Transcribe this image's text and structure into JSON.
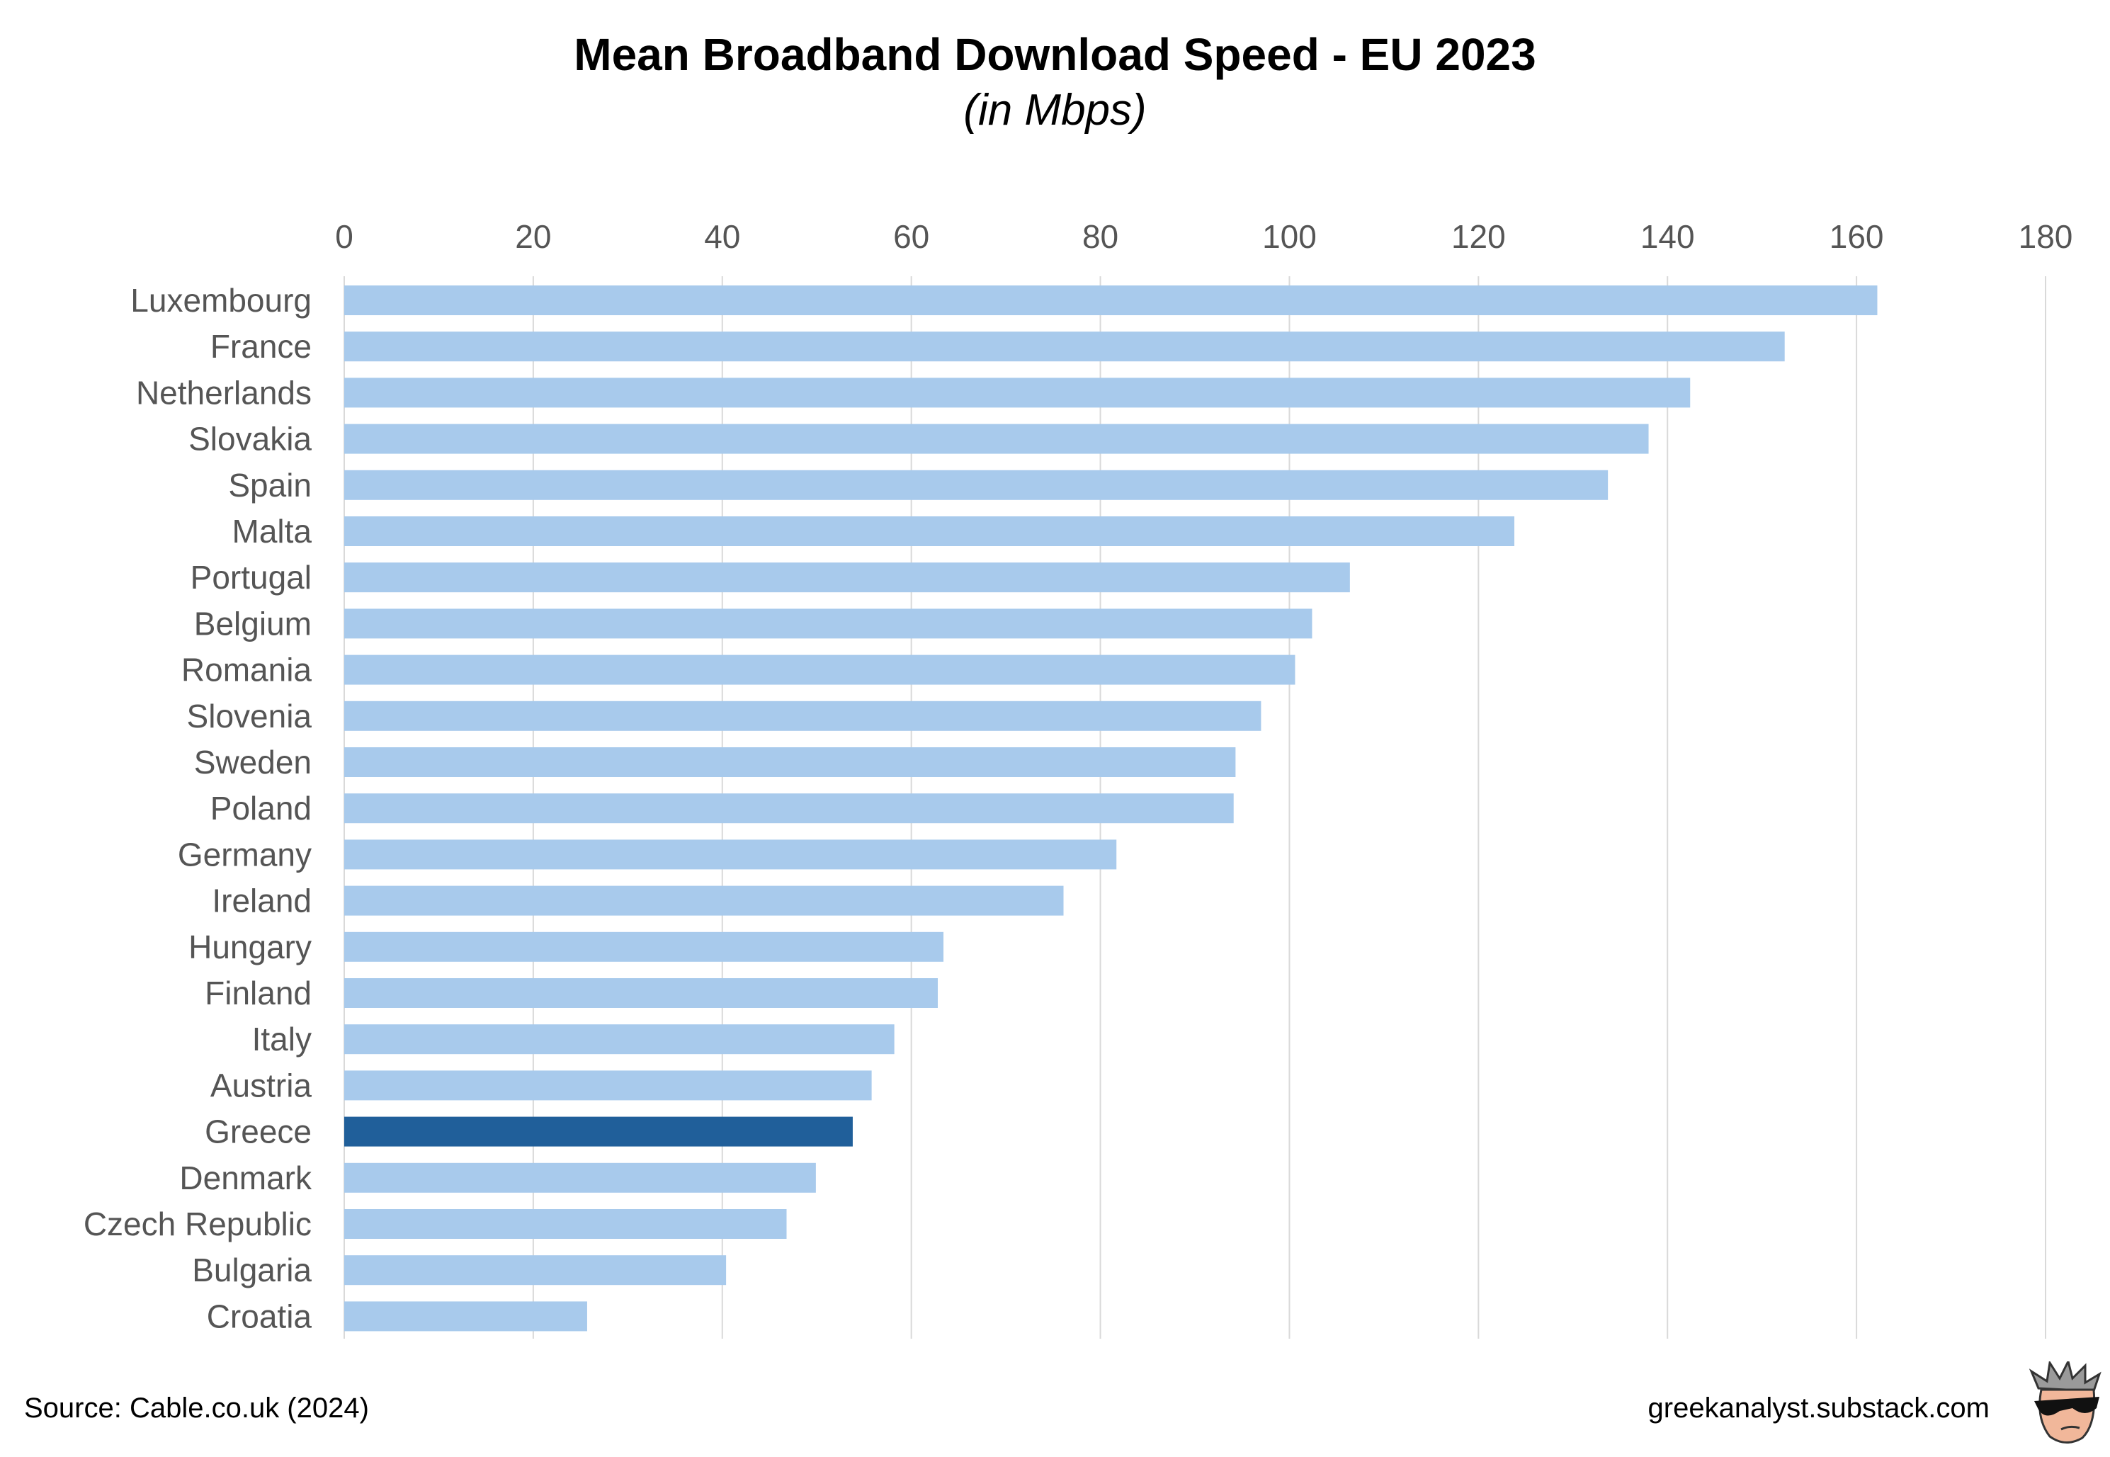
{
  "chart_data": {
    "type": "bar",
    "orientation": "horizontal",
    "title": "Mean Broadband Download Speed - EU 2023",
    "subtitle": "(in Mbps)",
    "xlabel": "",
    "ylabel": "",
    "xlim": [
      0,
      180
    ],
    "xticks": [
      0,
      20,
      40,
      60,
      80,
      100,
      120,
      140,
      160,
      180
    ],
    "x_axis_position": "top",
    "grid": true,
    "categories": [
      "Luxembourg",
      "France",
      "Netherlands",
      "Slovakia",
      "Spain",
      "Malta",
      "Portugal",
      "Belgium",
      "Romania",
      "Slovenia",
      "Sweden",
      "Poland",
      "Germany",
      "Ireland",
      "Hungary",
      "Finland",
      "Italy",
      "Austria",
      "Greece",
      "Denmark",
      "Czech Republic",
      "Bulgaria",
      "Croatia"
    ],
    "values": [
      162.2,
      152.4,
      142.4,
      138.0,
      133.7,
      123.8,
      106.4,
      102.4,
      100.6,
      97.0,
      94.3,
      94.1,
      81.7,
      76.1,
      63.4,
      62.8,
      58.2,
      55.8,
      53.8,
      49.9,
      46.8,
      40.4,
      25.7
    ],
    "highlight": "Greece",
    "colors": {
      "bar": "#a8caec",
      "highlight": "#205f9a",
      "grid": "#d9d9d9",
      "tick_text": "#555555"
    }
  },
  "footer": {
    "source": "Source: Cable.co.uk (2024)",
    "credit": "greekanalyst.substack.com"
  },
  "logo": {
    "icon": "cartoon-avatar-sunglasses-icon"
  }
}
